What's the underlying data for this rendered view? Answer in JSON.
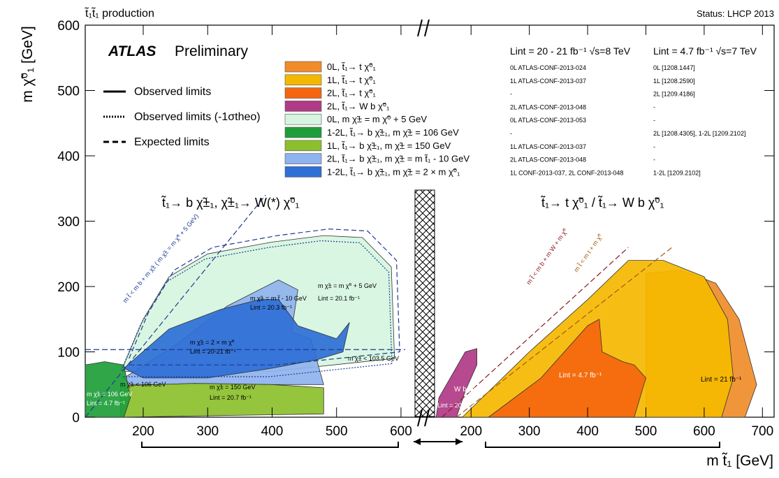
{
  "header": {
    "process": "t̃₁t̃₁ production",
    "status": "Status: LHCP 2013",
    "experiment": "ATLAS",
    "experiment_sub": "Preliminary"
  },
  "axes": {
    "ylabel": "m χ̃⁰₁ [GeV]",
    "xlabel": "m t̃₁ [GeV]",
    "left_xticks": [
      "200",
      "300",
      "400",
      "500",
      "600"
    ],
    "right_xticks": [
      "200",
      "300",
      "400",
      "500",
      "600",
      "700"
    ],
    "yticks": [
      "0",
      "100",
      "200",
      "300",
      "400",
      "500",
      "600"
    ]
  },
  "style_legend": [
    {
      "label": "Observed limits",
      "style": "solid"
    },
    {
      "label": "Observed limits (-1σtheo)",
      "style": "dotted"
    },
    {
      "label": "Expected limits",
      "style": "dashed"
    }
  ],
  "analyses": [
    {
      "label": "0L, t̃₁→ t χ̃⁰₁",
      "color": "#f08c2a",
      "ref_8tev": "0L ATLAS-CONF-2013-024",
      "ref_7tev": "0L [1208.1447]"
    },
    {
      "label": "1L, t̃₁→ t χ̃⁰₁",
      "color": "#f5b800",
      "ref_8tev": "1L ATLAS-CONF-2013-037",
      "ref_7tev": "1L [1208.2590]"
    },
    {
      "label": "2L, t̃₁→ t χ̃⁰₁",
      "color": "#f4660f",
      "ref_8tev": "-",
      "ref_7tev": "2L [1209.4186]"
    },
    {
      "label": "2L, t̃₁→ W b χ̃⁰₁",
      "color": "#b03a86",
      "ref_8tev": "2L ATLAS-CONF-2013-048",
      "ref_7tev": "-"
    },
    {
      "label": "0L, m χ̃± = m χ̃⁰ + 5 GeV",
      "color": "#d6f5e0",
      "ref_8tev": "0L ATLAS-CONF-2013-053",
      "ref_7tev": "-"
    },
    {
      "label": "1-2L, t̃₁→ b χ̃±₁, m χ̃± = 106 GeV",
      "color": "#1e9e3a",
      "ref_8tev": "-",
      "ref_7tev": "2L [1208.4305], 1-2L [1209.2102]"
    },
    {
      "label": "1L, t̃₁→ b χ̃±₁, m χ̃± = 150 GeV",
      "color": "#8cbf2c",
      "ref_8tev": "1L ATLAS-CONF-2013-037",
      "ref_7tev": "-"
    },
    {
      "label": "2L, t̃₁→ b χ̃±₁, m χ̃± = m t̃₁ - 10 GeV",
      "color": "#8fb3ee",
      "ref_8tev": "2L ATLAS-CONF-2013-048",
      "ref_7tev": "-"
    },
    {
      "label": "1-2L, t̃₁→ b χ̃±₁, m χ̃± = 2 × m χ̃⁰₁",
      "color": "#2f6fd6",
      "ref_8tev": "1L CONF-2013-037, 2L CONF-2013-048",
      "ref_7tev": "1-2L [1209.2102]"
    }
  ],
  "lumi_8tev": "Lint = 20 - 21 fb⁻¹ √s=8 TeV",
  "lumi_7tev": "Lint = 4.7 fb⁻¹ √s=7 TeV",
  "panel_titles": {
    "left": "t̃₁→ b χ̃±₁, χ̃±₁→ W(*) χ̃⁰₁",
    "right": "t̃₁→ t χ̃⁰₁ / t̃₁→ W b χ̃⁰₁"
  },
  "annotations": {
    "lsp5": "m χ̃± = m χ̃⁰ + 5 GeV",
    "lsp5_lumi": "Lint = 20.1 fb⁻¹",
    "ml10": "m χ̃± = m t̃ - 10 GeV",
    "ml10_lumi": "Lint = 20.3 fb⁻¹",
    "twice": "m χ̃± = 2 × m χ̃⁰",
    "twice_lumi": "Lint = 20-21 fb⁻¹",
    "c1035": "m χ̃± < 103.5 GeV",
    "c106": "m χ̃± < 106 GeV",
    "c150": "m χ̃± = 150 GeV",
    "c150_lumi": "Lint = 20.7 fb⁻¹",
    "g106": "m χ̃± = 106 GeV",
    "g106_lumi": "Lint = 4.7 fb⁻¹",
    "kin_left": "m t̃ < m b + m χ̃± ( m χ̃± = m χ̃⁰ + 5 GeV)",
    "kin_right1": "m t̃ < m b + m W + m χ̃⁰",
    "kin_right2": "m t̃ < m t + m χ̃⁰",
    "wb": "W b χ̃⁰₁",
    "wb_lumi": "Lint = 20 fb⁻¹",
    "lumi47": "Lint = 4.7 fb⁻¹",
    "lumi21": "Lint = 21 fb⁻¹"
  },
  "chart_data": {
    "type": "area",
    "xlabel": "m t̃₁ [GeV]",
    "ylabel": "m χ̃⁰₁ [GeV]",
    "left_panel": {
      "xlim": [
        110,
        625
      ],
      "ylim": [
        0,
        600
      ],
      "regions": [
        {
          "name": "0L, m χ̃± = m χ̃⁰ + 5 GeV",
          "points": [
            [
              170,
              80
            ],
            [
              200,
              150
            ],
            [
              240,
              215
            ],
            [
              300,
              250
            ],
            [
              400,
              268
            ],
            [
              480,
              278
            ],
            [
              540,
              275
            ],
            [
              585,
              230
            ],
            [
              590,
              90
            ],
            [
              400,
              70
            ],
            [
              170,
              70
            ]
          ]
        },
        {
          "name": "2L, t̃₁→ b χ̃±₁, m χ̃± = m t̃₁ - 10 GeV",
          "points": [
            [
              170,
              60
            ],
            [
              250,
              110
            ],
            [
              330,
              170
            ],
            [
              410,
              210
            ],
            [
              440,
              195
            ],
            [
              430,
              130
            ],
            [
              460,
              120
            ],
            [
              480,
              50
            ],
            [
              180,
              50
            ]
          ]
        },
        {
          "name": "1-2L, t̃₁→ b χ̃±₁, m χ̃± = 2 × m χ̃⁰₁",
          "points": [
            [
              170,
              75
            ],
            [
              240,
              135
            ],
            [
              320,
              165
            ],
            [
              380,
              180
            ],
            [
              410,
              180
            ],
            [
              440,
              140
            ],
            [
              470,
              130
            ],
            [
              500,
              120
            ],
            [
              520,
              145
            ],
            [
              510,
              100
            ],
            [
              470,
              88
            ],
            [
              400,
              75
            ],
            [
              300,
              60
            ],
            [
              200,
              60
            ]
          ]
        },
        {
          "name": "1L, t̃₁→ b χ̃±₁, m χ̃± = 150 GeV",
          "points": [
            [
              165,
              48
            ],
            [
              280,
              52
            ],
            [
              400,
              50
            ],
            [
              480,
              45
            ],
            [
              480,
              5
            ],
            [
              165,
              0
            ]
          ]
        },
        {
          "name": "1-2L, t̃₁→ b χ̃±₁, m χ̃± = 106 GeV",
          "points": [
            [
              110,
              80
            ],
            [
              140,
              85
            ],
            [
              170,
              80
            ],
            [
              180,
              30
            ],
            [
              170,
              0
            ],
            [
              110,
              0
            ]
          ]
        }
      ],
      "reference_line": {
        "name": "m χ̃± < 103.5 GeV",
        "y": 103.5
      }
    },
    "right_panel": {
      "xlim": [
        135,
        720
      ],
      "ylim": [
        0,
        600
      ],
      "regions": [
        {
          "name": "0L, t̃₁→ t χ̃⁰₁",
          "points": [
            [
              500,
              220
            ],
            [
              560,
              225
            ],
            [
              620,
              205
            ],
            [
              660,
              150
            ],
            [
              690,
              50
            ],
            [
              670,
              0
            ],
            [
              500,
              0
            ]
          ]
        },
        {
          "name": "1L, t̃₁→ t χ̃⁰₁",
          "points": [
            [
              185,
              0
            ],
            [
              300,
              100
            ],
            [
              400,
              180
            ],
            [
              470,
              240
            ],
            [
              530,
              240
            ],
            [
              600,
              215
            ],
            [
              640,
              150
            ],
            [
              650,
              60
            ],
            [
              630,
              0
            ]
          ]
        },
        {
          "name": "2L, t̃₁→ t χ̃⁰₁",
          "points": [
            [
              230,
              0
            ],
            [
              320,
              60
            ],
            [
              400,
              140
            ],
            [
              420,
              150
            ],
            [
              425,
              100
            ],
            [
              460,
              85
            ],
            [
              480,
              80
            ],
            [
              500,
              60
            ],
            [
              480,
              0
            ]
          ]
        },
        {
          "name": "2L, t̃₁→ W b χ̃⁰₁",
          "points": [
            [
              140,
              0
            ],
            [
              145,
              30
            ],
            [
              190,
              100
            ],
            [
              210,
              105
            ],
            [
              210,
              80
            ],
            [
              190,
              40
            ],
            [
              175,
              0
            ]
          ]
        }
      ]
    }
  }
}
